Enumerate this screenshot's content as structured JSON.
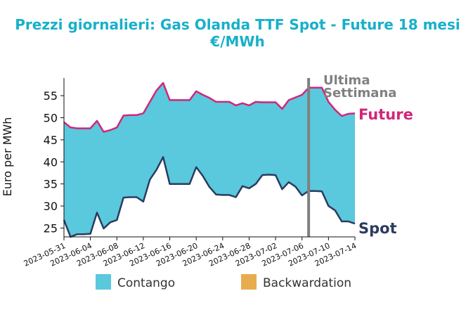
{
  "chart_data": {
    "type": "area",
    "title": "Prezzi giornalieri: Gas Olanda TTF Spot - Future 18 mesi",
    "title_line2": "€/MWh",
    "ylabel": "Euro per MWh",
    "xlabel": "",
    "ylim": [
      23,
      59
    ],
    "yticks": [
      25,
      30,
      35,
      40,
      45,
      50,
      55
    ],
    "xlim": [
      "2023-05-31",
      "2023-07-14"
    ],
    "xticks": [
      "2023-05-31",
      "2023-06-04",
      "2023-06-08",
      "2023-06-12",
      "2023-06-16",
      "2023-06-20",
      "2023-06-24",
      "2023-06-28",
      "2023-07-02",
      "2023-07-06",
      "2023-07-10",
      "2023-07-14"
    ],
    "colors": {
      "future": "#d0267a",
      "spot": "#2b3c5e",
      "contango": "#5ac8dd",
      "backwardation": "#e8ac4e",
      "marker": "#808080",
      "title": "#17b0c9"
    },
    "series": [
      {
        "name": "Future",
        "points": [
          [
            "2023-05-31",
            49.0
          ],
          [
            "2023-06-01",
            47.8
          ],
          [
            "2023-06-02",
            47.6
          ],
          [
            "2023-06-03",
            47.6
          ],
          [
            "2023-06-04",
            47.6
          ],
          [
            "2023-06-05",
            49.3
          ],
          [
            "2023-06-06",
            46.8
          ],
          [
            "2023-06-07",
            47.2
          ],
          [
            "2023-06-08",
            47.8
          ],
          [
            "2023-06-09",
            50.5
          ],
          [
            "2023-06-10",
            50.6
          ],
          [
            "2023-06-11",
            50.6
          ],
          [
            "2023-06-12",
            51.0
          ],
          [
            "2023-06-13",
            53.6
          ],
          [
            "2023-06-14",
            56.2
          ],
          [
            "2023-06-15",
            57.9
          ],
          [
            "2023-06-16",
            54.0
          ],
          [
            "2023-06-17",
            54.0
          ],
          [
            "2023-06-18",
            54.0
          ],
          [
            "2023-06-19",
            54.0
          ],
          [
            "2023-06-20",
            56.0
          ],
          [
            "2023-06-21",
            55.2
          ],
          [
            "2023-06-22",
            54.5
          ],
          [
            "2023-06-23",
            53.6
          ],
          [
            "2023-06-24",
            53.6
          ],
          [
            "2023-06-25",
            53.6
          ],
          [
            "2023-06-26",
            52.8
          ],
          [
            "2023-06-27",
            53.3
          ],
          [
            "2023-06-28",
            52.8
          ],
          [
            "2023-06-29",
            53.6
          ],
          [
            "2023-06-30",
            53.5
          ],
          [
            "2023-07-01",
            53.5
          ],
          [
            "2023-07-02",
            53.5
          ],
          [
            "2023-07-03",
            52.0
          ],
          [
            "2023-07-04",
            54.0
          ],
          [
            "2023-07-05",
            54.6
          ],
          [
            "2023-07-06",
            55.2
          ],
          [
            "2023-07-07",
            56.8
          ],
          [
            "2023-07-08",
            56.8
          ],
          [
            "2023-07-09",
            56.8
          ],
          [
            "2023-07-10",
            53.6
          ],
          [
            "2023-07-11",
            51.8
          ],
          [
            "2023-07-12",
            50.4
          ],
          [
            "2023-07-13",
            50.9
          ],
          [
            "2023-07-14",
            51.0
          ]
        ]
      },
      {
        "name": "Spot",
        "points": [
          [
            "2023-05-31",
            26.8
          ],
          [
            "2023-06-01",
            23.0
          ],
          [
            "2023-06-02",
            23.6
          ],
          [
            "2023-06-03",
            23.6
          ],
          [
            "2023-06-04",
            23.7
          ],
          [
            "2023-06-05",
            28.5
          ],
          [
            "2023-06-06",
            24.9
          ],
          [
            "2023-06-07",
            26.3
          ],
          [
            "2023-06-08",
            26.8
          ],
          [
            "2023-06-09",
            31.9
          ],
          [
            "2023-06-10",
            32.0
          ],
          [
            "2023-06-11",
            32.0
          ],
          [
            "2023-06-12",
            31.0
          ],
          [
            "2023-06-13",
            36.0
          ],
          [
            "2023-06-14",
            38.2
          ],
          [
            "2023-06-15",
            41.1
          ],
          [
            "2023-06-16",
            35.0
          ],
          [
            "2023-06-17",
            35.0
          ],
          [
            "2023-06-18",
            35.0
          ],
          [
            "2023-06-19",
            35.0
          ],
          [
            "2023-06-20",
            38.8
          ],
          [
            "2023-06-21",
            36.8
          ],
          [
            "2023-06-22",
            34.3
          ],
          [
            "2023-06-23",
            32.6
          ],
          [
            "2023-06-24",
            32.5
          ],
          [
            "2023-06-25",
            32.5
          ],
          [
            "2023-06-26",
            32.0
          ],
          [
            "2023-06-27",
            34.5
          ],
          [
            "2023-06-28",
            34.0
          ],
          [
            "2023-06-29",
            35.0
          ],
          [
            "2023-06-30",
            37.0
          ],
          [
            "2023-07-01",
            37.1
          ],
          [
            "2023-07-02",
            37.0
          ],
          [
            "2023-07-03",
            33.8
          ],
          [
            "2023-07-04",
            35.4
          ],
          [
            "2023-07-05",
            34.4
          ],
          [
            "2023-07-06",
            32.4
          ],
          [
            "2023-07-07",
            33.4
          ],
          [
            "2023-07-08",
            33.4
          ],
          [
            "2023-07-09",
            33.3
          ],
          [
            "2023-07-10",
            30.0
          ],
          [
            "2023-07-11",
            29.0
          ],
          [
            "2023-07-12",
            26.5
          ],
          [
            "2023-07-13",
            26.5
          ],
          [
            "2023-07-14",
            26.0
          ]
        ]
      }
    ],
    "annotations": {
      "last_week_line1": "Ultima",
      "last_week_line2": "Settimana",
      "last_week_date": "2023-07-07"
    },
    "legend": {
      "placement": "bottom",
      "items": [
        {
          "label": "Contango",
          "color": "#5ac8dd"
        },
        {
          "label": "Backwardation",
          "color": "#e8ac4e"
        }
      ]
    },
    "grid": false
  }
}
